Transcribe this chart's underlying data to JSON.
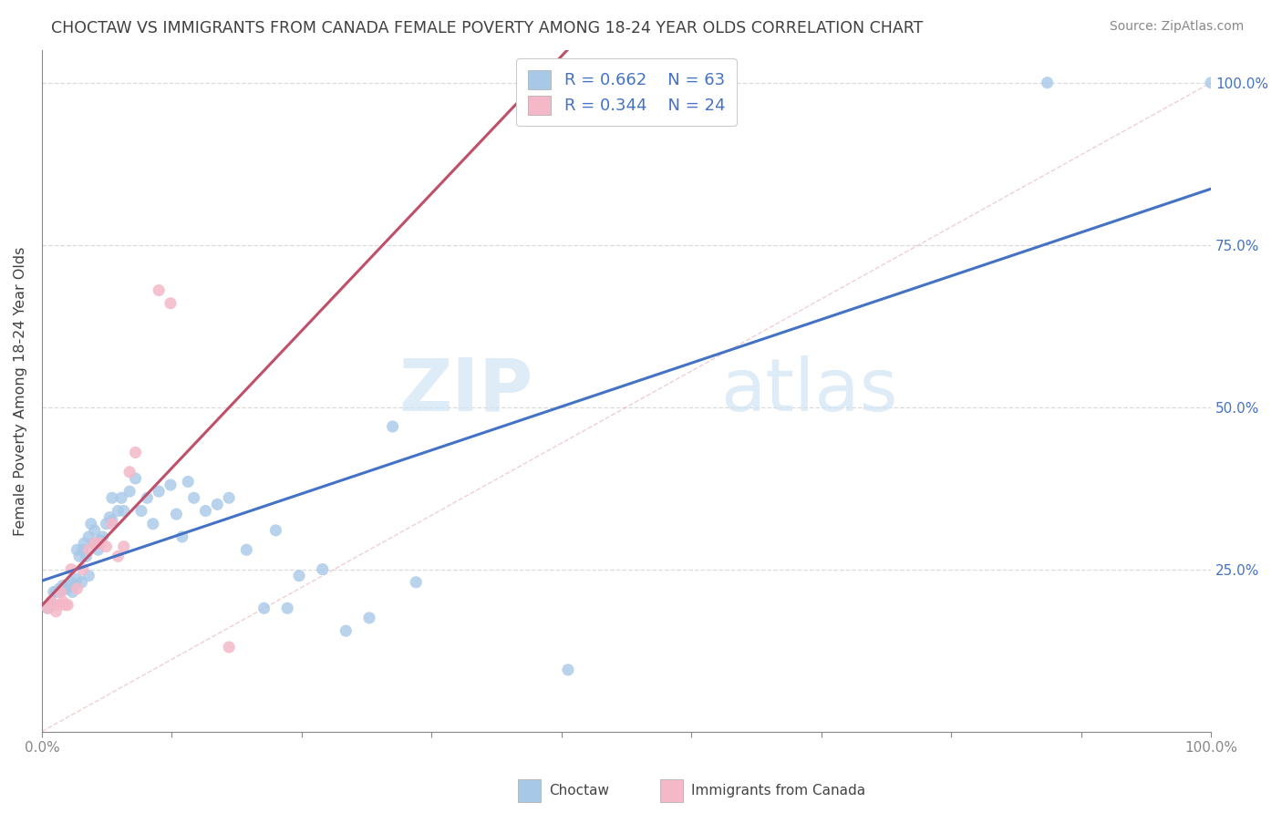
{
  "title": "CHOCTAW VS IMMIGRANTS FROM CANADA FEMALE POVERTY AMONG 18-24 YEAR OLDS CORRELATION CHART",
  "source": "Source: ZipAtlas.com",
  "ylabel": "Female Poverty Among 18-24 Year Olds",
  "xlabel": "",
  "xlim": [
    0,
    1
  ],
  "ylim": [
    0,
    1.05
  ],
  "xtick_labels": [
    "0.0%",
    "100.0%"
  ],
  "ytick_labels": [
    "25.0%",
    "50.0%",
    "75.0%",
    "100.0%"
  ],
  "ytick_positions": [
    0.25,
    0.5,
    0.75,
    1.0
  ],
  "watermark_zip": "ZIP",
  "watermark_atlas": "atlas",
  "legend_r1": "R = 0.662",
  "legend_n1": "N = 63",
  "legend_r2": "R = 0.344",
  "legend_n2": "N = 24",
  "legend_label1": "Choctaw",
  "legend_label2": "Immigrants from Canada",
  "color_blue": "#a8c8e8",
  "color_pink": "#f4b8c8",
  "line_color_blue": "#4472c4",
  "line_color_pink": "#c0506a",
  "line_color_diag": "#e0a0a8",
  "background_color": "#ffffff",
  "grid_color": "#cccccc",
  "title_color": "#404040",
  "source_color": "#888888",
  "axis_label_color": "#888888",
  "right_tick_color": "#4472c4",
  "blue_scatter_x": [
    0.005,
    0.008,
    0.01,
    0.012,
    0.015,
    0.016,
    0.018,
    0.02,
    0.022,
    0.024,
    0.025,
    0.026,
    0.028,
    0.03,
    0.03,
    0.032,
    0.034,
    0.035,
    0.036,
    0.038,
    0.04,
    0.04,
    0.042,
    0.044,
    0.045,
    0.046,
    0.048,
    0.05,
    0.052,
    0.055,
    0.058,
    0.06,
    0.06,
    0.065,
    0.068,
    0.07,
    0.075,
    0.08,
    0.085,
    0.09,
    0.095,
    0.1,
    0.11,
    0.115,
    0.12,
    0.125,
    0.13,
    0.14,
    0.15,
    0.16,
    0.175,
    0.19,
    0.2,
    0.21,
    0.22,
    0.24,
    0.26,
    0.28,
    0.3,
    0.32,
    0.45,
    0.86,
    1.0
  ],
  "blue_scatter_y": [
    0.19,
    0.2,
    0.215,
    0.215,
    0.22,
    0.215,
    0.225,
    0.22,
    0.22,
    0.225,
    0.23,
    0.215,
    0.225,
    0.235,
    0.28,
    0.27,
    0.23,
    0.28,
    0.29,
    0.27,
    0.24,
    0.3,
    0.32,
    0.29,
    0.31,
    0.29,
    0.28,
    0.295,
    0.3,
    0.32,
    0.33,
    0.325,
    0.36,
    0.34,
    0.36,
    0.34,
    0.37,
    0.39,
    0.34,
    0.36,
    0.32,
    0.37,
    0.38,
    0.335,
    0.3,
    0.385,
    0.36,
    0.34,
    0.35,
    0.36,
    0.28,
    0.19,
    0.31,
    0.19,
    0.24,
    0.25,
    0.155,
    0.175,
    0.47,
    0.23,
    0.095,
    1.0,
    1.0
  ],
  "pink_scatter_x": [
    0.005,
    0.008,
    0.01,
    0.012,
    0.015,
    0.016,
    0.018,
    0.02,
    0.022,
    0.025,
    0.03,
    0.035,
    0.04,
    0.045,
    0.05,
    0.055,
    0.06,
    0.065,
    0.07,
    0.075,
    0.08,
    0.1,
    0.11,
    0.16
  ],
  "pink_scatter_y": [
    0.19,
    0.2,
    0.195,
    0.185,
    0.195,
    0.215,
    0.2,
    0.195,
    0.195,
    0.25,
    0.22,
    0.25,
    0.28,
    0.29,
    0.29,
    0.285,
    0.32,
    0.27,
    0.285,
    0.4,
    0.43,
    0.68,
    0.66,
    0.13
  ]
}
